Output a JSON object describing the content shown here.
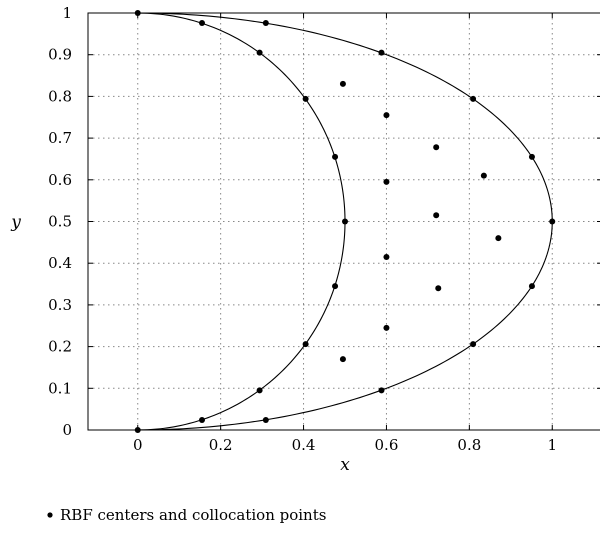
{
  "chart_data": {
    "type": "scatter",
    "xlabel": "x",
    "ylabel": "y",
    "xlim": [
      -0.12,
      1.12
    ],
    "ylim": [
      0,
      1
    ],
    "x_ticks": [
      "0",
      "0.2",
      "0.4",
      "0.6",
      "0.8",
      "1"
    ],
    "x_tick_values": [
      0,
      0.2,
      0.4,
      0.6,
      0.8,
      1
    ],
    "y_ticks": [
      "0",
      "0.1",
      "0.2",
      "0.3",
      "0.4",
      "0.5",
      "0.6",
      "0.7",
      "0.8",
      "0.9",
      "1"
    ],
    "y_tick_values": [
      0,
      0.1,
      0.2,
      0.3,
      0.4,
      0.5,
      0.6,
      0.7,
      0.8,
      0.9,
      1
    ],
    "grid": "dotted",
    "legend": {
      "label": "RBF centers and collocation points",
      "placement": "bottom-left"
    },
    "curves": [
      {
        "shape": "ellipse-arc",
        "center": [
          0,
          0.5
        ],
        "rx": 0.5,
        "ry": 0.5
      },
      {
        "shape": "ellipse-arc",
        "center": [
          0,
          0.5
        ],
        "rx": 1,
        "ry": 0.5
      }
    ],
    "points": [
      {
        "x": 0,
        "y": 0
      },
      {
        "x": 0,
        "y": 1
      },
      {
        "x": 0.155,
        "y": 0.024
      },
      {
        "x": 0.155,
        "y": 0.976
      },
      {
        "x": 0.294,
        "y": 0.095
      },
      {
        "x": 0.294,
        "y": 0.905
      },
      {
        "x": 0.405,
        "y": 0.206
      },
      {
        "x": 0.405,
        "y": 0.794
      },
      {
        "x": 0.476,
        "y": 0.345
      },
      {
        "x": 0.476,
        "y": 0.655
      },
      {
        "x": 0.5,
        "y": 0.5
      },
      {
        "x": 0.309,
        "y": 0.024
      },
      {
        "x": 0.309,
        "y": 0.976
      },
      {
        "x": 0.588,
        "y": 0.095
      },
      {
        "x": 0.588,
        "y": 0.905
      },
      {
        "x": 0.809,
        "y": 0.206
      },
      {
        "x": 0.809,
        "y": 0.794
      },
      {
        "x": 0.951,
        "y": 0.345
      },
      {
        "x": 0.951,
        "y": 0.655
      },
      {
        "x": 1,
        "y": 0.5
      },
      {
        "x": 0.495,
        "y": 0.83
      },
      {
        "x": 0.495,
        "y": 0.17
      },
      {
        "x": 0.6,
        "y": 0.755
      },
      {
        "x": 0.6,
        "y": 0.595
      },
      {
        "x": 0.6,
        "y": 0.415
      },
      {
        "x": 0.6,
        "y": 0.245
      },
      {
        "x": 0.72,
        "y": 0.678
      },
      {
        "x": 0.72,
        "y": 0.515
      },
      {
        "x": 0.725,
        "y": 0.34
      },
      {
        "x": 0.835,
        "y": 0.61
      },
      {
        "x": 0.87,
        "y": 0.46
      }
    ]
  }
}
